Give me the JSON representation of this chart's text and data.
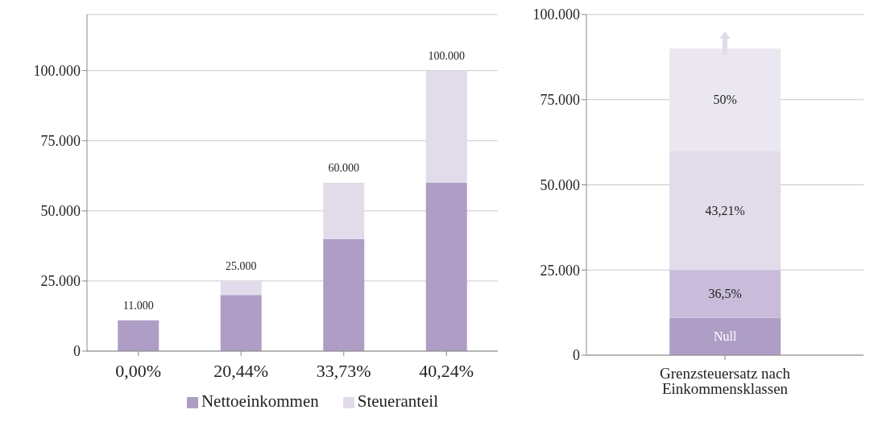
{
  "chart_data": [
    {
      "type": "bar",
      "stacked": true,
      "categories": [
        "0,00%",
        "20,44%",
        "33,73%",
        "40,24%"
      ],
      "series": [
        {
          "name": "Nettoeinkommen",
          "color": "#ae9ec6",
          "values": [
            11000,
            20000,
            40000,
            60000
          ]
        },
        {
          "name": "Steueranteil",
          "color": "#e2dbe9",
          "values": [
            0,
            5000,
            20000,
            40000
          ]
        }
      ],
      "totals": [
        "11.000",
        "25.000",
        "60.000",
        "100.000"
      ],
      "ylim": [
        0,
        120000
      ],
      "yticks": [
        0,
        {
          "value": 25000,
          "label": "25.000"
        },
        {
          "value": 50000,
          "label": "50.000"
        },
        {
          "value": 75000,
          "label": "75.000"
        },
        {
          "value": 100000,
          "label": "100.000"
        }
      ],
      "grid": "y",
      "legend": "bottom"
    },
    {
      "type": "bar",
      "stacked": true,
      "categories": [
        "Grenzsteuersatz nach Einkommensklassen"
      ],
      "series": [
        {
          "name": "Null",
          "color": "#ae9ec6",
          "values": [
            11000
          ]
        },
        {
          "name": "36,5%",
          "color": "#c8bcda",
          "values": [
            14000
          ]
        },
        {
          "name": "43,21%",
          "color": "#e2dbe9",
          "values": [
            35000
          ]
        },
        {
          "name": "50%",
          "color": "#ebe7f1",
          "values": [
            30000
          ]
        }
      ],
      "ylim": [
        0,
        100000
      ],
      "yticks": [
        0,
        {
          "value": 25000,
          "label": "25.000"
        },
        {
          "value": 50000,
          "label": "50.000"
        },
        {
          "value": 75000,
          "label": "75.000"
        },
        {
          "value": 100000,
          "label": "100.000"
        }
      ],
      "grid": "y",
      "legend": false
    }
  ]
}
